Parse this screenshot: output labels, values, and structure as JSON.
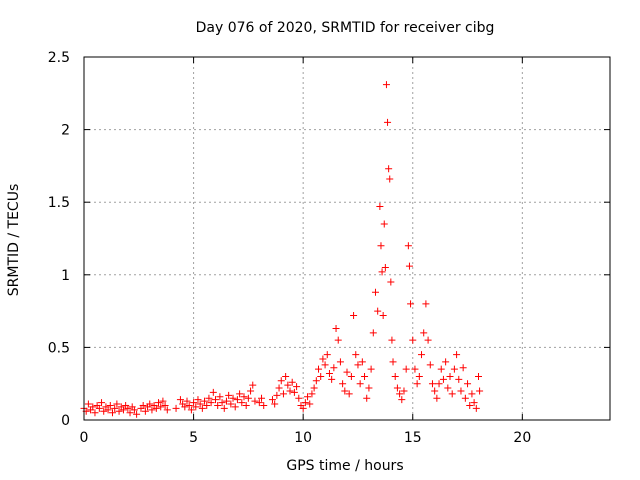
{
  "chart_data": {
    "type": "scatter",
    "title": "Day 076 of 2020, SRMTID for receiver cibg",
    "xlabel": "GPS time / hours",
    "ylabel": "SRMTID / TECUs",
    "xlim": [
      0,
      24
    ],
    "ylim": [
      0,
      2.5
    ],
    "xticks": [
      0,
      5,
      10,
      15,
      20
    ],
    "xtick_labels": [
      "0",
      "5",
      "10",
      "15",
      "20"
    ],
    "yticks": [
      0,
      0.5,
      1,
      1.5,
      2,
      2.5
    ],
    "ytick_labels": [
      "0",
      "0.5",
      "1",
      "1.5",
      "2",
      "2.5"
    ],
    "grid": true,
    "marker": "+",
    "color": "#ff0000",
    "series": [
      {
        "name": "SRMTID",
        "points": [
          [
            0.0,
            0.08
          ],
          [
            0.1,
            0.06
          ],
          [
            0.2,
            0.11
          ],
          [
            0.3,
            0.07
          ],
          [
            0.4,
            0.09
          ],
          [
            0.5,
            0.05
          ],
          [
            0.6,
            0.1
          ],
          [
            0.7,
            0.08
          ],
          [
            0.8,
            0.12
          ],
          [
            0.9,
            0.06
          ],
          [
            1.0,
            0.09
          ],
          [
            1.1,
            0.07
          ],
          [
            1.2,
            0.1
          ],
          [
            1.3,
            0.05
          ],
          [
            1.4,
            0.08
          ],
          [
            1.5,
            0.11
          ],
          [
            1.6,
            0.06
          ],
          [
            1.7,
            0.09
          ],
          [
            1.8,
            0.07
          ],
          [
            1.9,
            0.1
          ],
          [
            2.0,
            0.08
          ],
          [
            2.1,
            0.05
          ],
          [
            2.2,
            0.09
          ],
          [
            2.3,
            0.07
          ],
          [
            2.4,
            0.04
          ],
          [
            2.6,
            0.08
          ],
          [
            2.7,
            0.1
          ],
          [
            2.8,
            0.06
          ],
          [
            2.9,
            0.09
          ],
          [
            3.0,
            0.11
          ],
          [
            3.1,
            0.07
          ],
          [
            3.2,
            0.1
          ],
          [
            3.3,
            0.08
          ],
          [
            3.4,
            0.12
          ],
          [
            3.5,
            0.09
          ],
          [
            3.6,
            0.13
          ],
          [
            3.7,
            0.1
          ],
          [
            3.8,
            0.07
          ],
          [
            4.2,
            0.08
          ],
          [
            4.4,
            0.14
          ],
          [
            4.5,
            0.11
          ],
          [
            4.6,
            0.09
          ],
          [
            4.7,
            0.13
          ],
          [
            4.8,
            0.1
          ],
          [
            4.9,
            0.07
          ],
          [
            5.0,
            0.12
          ],
          [
            5.1,
            0.09
          ],
          [
            5.2,
            0.14
          ],
          [
            5.3,
            0.11
          ],
          [
            5.4,
            0.08
          ],
          [
            5.5,
            0.13
          ],
          [
            5.6,
            0.1
          ],
          [
            5.7,
            0.15
          ],
          [
            5.8,
            0.12
          ],
          [
            5.9,
            0.19
          ],
          [
            6.0,
            0.14
          ],
          [
            6.1,
            0.1
          ],
          [
            6.2,
            0.16
          ],
          [
            6.3,
            0.12
          ],
          [
            6.4,
            0.08
          ],
          [
            6.5,
            0.13
          ],
          [
            6.6,
            0.17
          ],
          [
            6.7,
            0.11
          ],
          [
            6.8,
            0.15
          ],
          [
            6.9,
            0.09
          ],
          [
            7.0,
            0.14
          ],
          [
            7.1,
            0.18
          ],
          [
            7.2,
            0.12
          ],
          [
            7.3,
            0.16
          ],
          [
            7.4,
            0.1
          ],
          [
            7.5,
            0.15
          ],
          [
            7.6,
            0.2
          ],
          [
            7.7,
            0.24
          ],
          [
            7.8,
            0.13
          ],
          [
            8.0,
            0.12
          ],
          [
            8.1,
            0.15
          ],
          [
            8.2,
            0.1
          ],
          [
            8.6,
            0.14
          ],
          [
            8.7,
            0.11
          ],
          [
            8.8,
            0.17
          ],
          [
            8.9,
            0.22
          ],
          [
            9.0,
            0.27
          ],
          [
            9.1,
            0.18
          ],
          [
            9.2,
            0.3
          ],
          [
            9.3,
            0.24
          ],
          [
            9.4,
            0.2
          ],
          [
            9.5,
            0.26
          ],
          [
            9.6,
            0.19
          ],
          [
            9.7,
            0.23
          ],
          [
            9.8,
            0.15
          ],
          [
            9.9,
            0.1
          ],
          [
            10.0,
            0.08
          ],
          [
            10.1,
            0.12
          ],
          [
            10.2,
            0.16
          ],
          [
            10.3,
            0.11
          ],
          [
            10.4,
            0.18
          ],
          [
            10.5,
            0.22
          ],
          [
            10.6,
            0.27
          ],
          [
            10.7,
            0.35
          ],
          [
            10.8,
            0.3
          ],
          [
            10.9,
            0.42
          ],
          [
            11.0,
            0.38
          ],
          [
            11.1,
            0.45
          ],
          [
            11.2,
            0.32
          ],
          [
            11.3,
            0.28
          ],
          [
            11.4,
            0.36
          ],
          [
            11.5,
            0.63
          ],
          [
            11.6,
            0.55
          ],
          [
            11.7,
            0.4
          ],
          [
            11.8,
            0.25
          ],
          [
            11.9,
            0.2
          ],
          [
            12.0,
            0.33
          ],
          [
            12.1,
            0.18
          ],
          [
            12.2,
            0.3
          ],
          [
            12.3,
            0.72
          ],
          [
            12.4,
            0.45
          ],
          [
            12.5,
            0.38
          ],
          [
            12.6,
            0.25
          ],
          [
            12.7,
            0.4
          ],
          [
            12.8,
            0.3
          ],
          [
            12.9,
            0.15
          ],
          [
            13.0,
            0.22
          ],
          [
            13.1,
            0.35
          ],
          [
            13.2,
            0.6
          ],
          [
            13.3,
            0.88
          ],
          [
            13.4,
            0.75
          ],
          [
            13.5,
            1.47
          ],
          [
            13.55,
            1.2
          ],
          [
            13.6,
            1.02
          ],
          [
            13.65,
            0.72
          ],
          [
            13.7,
            1.35
          ],
          [
            13.75,
            1.05
          ],
          [
            13.8,
            2.31
          ],
          [
            13.85,
            2.05
          ],
          [
            13.9,
            1.73
          ],
          [
            13.95,
            1.66
          ],
          [
            14.0,
            0.95
          ],
          [
            14.05,
            0.55
          ],
          [
            14.1,
            0.4
          ],
          [
            14.2,
            0.3
          ],
          [
            14.3,
            0.22
          ],
          [
            14.4,
            0.18
          ],
          [
            14.5,
            0.14
          ],
          [
            14.6,
            0.2
          ],
          [
            14.7,
            0.35
          ],
          [
            14.8,
            1.2
          ],
          [
            14.85,
            1.06
          ],
          [
            14.9,
            0.8
          ],
          [
            15.0,
            0.55
          ],
          [
            15.1,
            0.35
          ],
          [
            15.2,
            0.25
          ],
          [
            15.3,
            0.3
          ],
          [
            15.4,
            0.45
          ],
          [
            15.5,
            0.6
          ],
          [
            15.6,
            0.8
          ],
          [
            15.7,
            0.55
          ],
          [
            15.8,
            0.38
          ],
          [
            15.9,
            0.25
          ],
          [
            16.0,
            0.2
          ],
          [
            16.1,
            0.15
          ],
          [
            16.2,
            0.25
          ],
          [
            16.3,
            0.35
          ],
          [
            16.4,
            0.28
          ],
          [
            16.5,
            0.4
          ],
          [
            16.6,
            0.22
          ],
          [
            16.7,
            0.3
          ],
          [
            16.8,
            0.18
          ],
          [
            16.9,
            0.35
          ],
          [
            17.0,
            0.45
          ],
          [
            17.1,
            0.28
          ],
          [
            17.2,
            0.2
          ],
          [
            17.3,
            0.36
          ],
          [
            17.4,
            0.15
          ],
          [
            17.5,
            0.25
          ],
          [
            17.6,
            0.1
          ],
          [
            17.7,
            0.18
          ],
          [
            17.8,
            0.12
          ],
          [
            17.9,
            0.08
          ],
          [
            18.0,
            0.3
          ],
          [
            18.05,
            0.2
          ]
        ]
      }
    ]
  }
}
